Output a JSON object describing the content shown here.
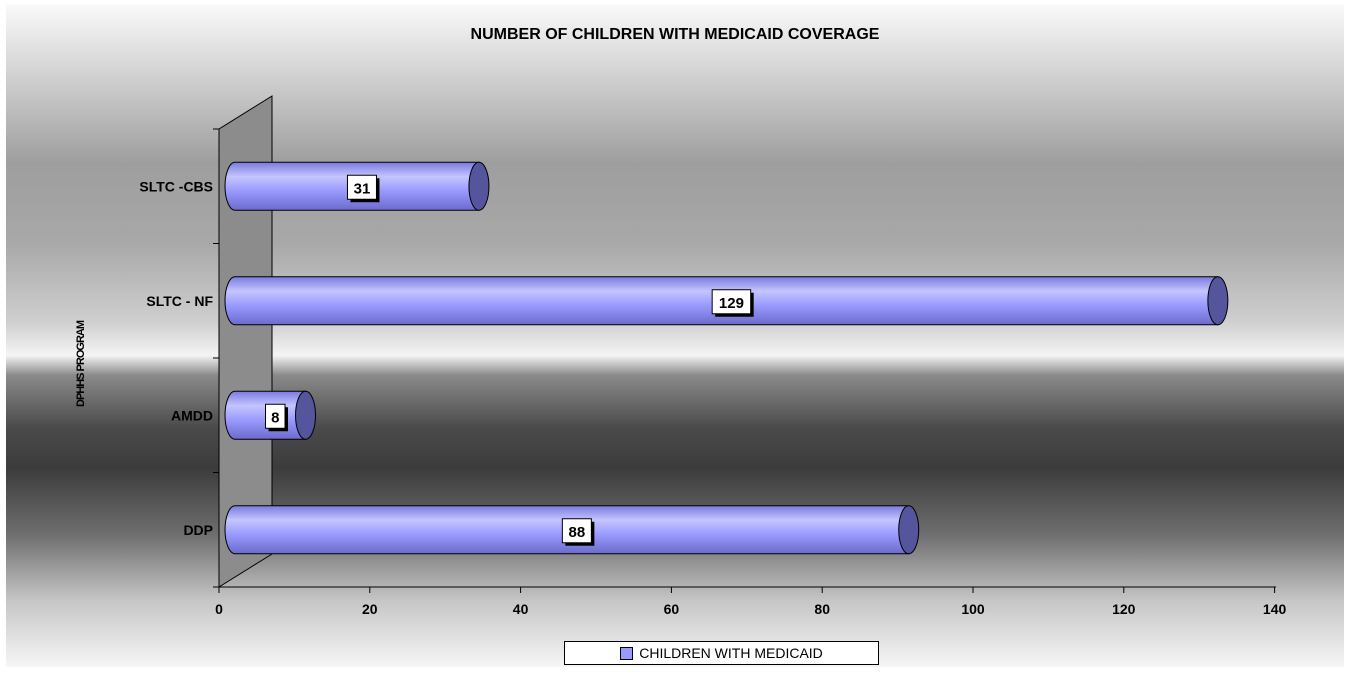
{
  "chart_data": {
    "type": "bar",
    "orientation": "horizontal",
    "title": "NUMBER OF CHILDREN WITH MEDICAID COVERAGE",
    "ylabel": "DPHHS PROGRAM",
    "xlabel": "",
    "categories": [
      "SLTC -CBS",
      "SLTC - NF",
      "AMDD",
      "DDP"
    ],
    "series": [
      {
        "name": "CHILDREN WITH MEDICAID",
        "values": [
          31,
          129,
          8,
          88
        ],
        "color": "#9999ff"
      }
    ],
    "xlim": [
      0,
      140
    ],
    "xticks": [
      "0",
      "20",
      "40",
      "60",
      "80",
      "100",
      "120",
      "140"
    ],
    "legend_position": "bottom",
    "grid": false,
    "bar_style": "3d-cylinder"
  }
}
